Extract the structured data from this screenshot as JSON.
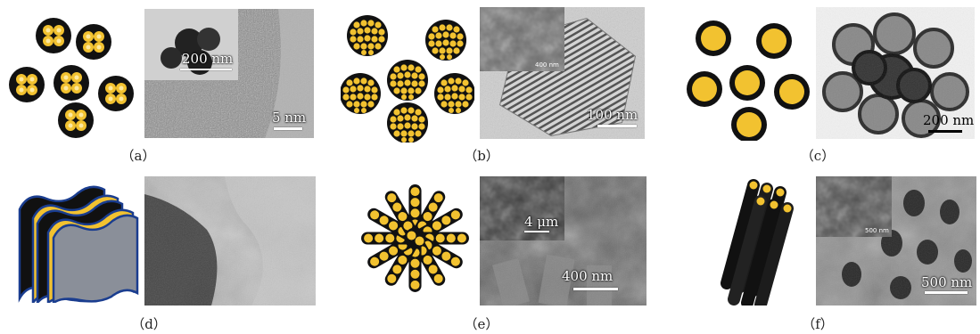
{
  "figure": {
    "panels": [
      {
        "id": "a",
        "caption": "（a）",
        "scale_main": "5 nm",
        "scale_inset": "200 nm"
      },
      {
        "id": "b",
        "caption": "（b）",
        "scale_main": "100 nm",
        "scale_inset": "400 nm"
      },
      {
        "id": "c",
        "caption": "（c）",
        "scale_main": "200 nm"
      },
      {
        "id": "d",
        "caption": "（d）"
      },
      {
        "id": "e",
        "caption": "（e）",
        "scale_main": "400 nm",
        "scale_inset": "4 μm"
      },
      {
        "id": "f",
        "caption": "（f）",
        "scale_main": "500 nm",
        "scale_inset": "500 nm"
      }
    ]
  },
  "colors": {
    "shell": "#111111",
    "core": "#f2c230",
    "core_light": "#fde9a0"
  }
}
